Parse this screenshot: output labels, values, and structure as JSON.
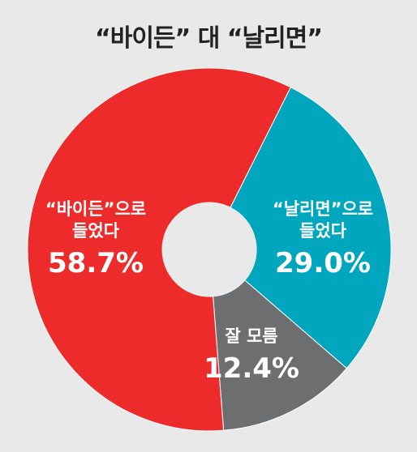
{
  "chart_data": {
    "type": "pie",
    "title": "“바이든” 대 “날리면”",
    "donut": true,
    "slices": [
      {
        "lines": [
          "“날리면”으로",
          "들었다"
        ],
        "percent_label": "29.0%",
        "value": 29.0,
        "color": "#00a6be"
      },
      {
        "lines": [
          "잘 모름"
        ],
        "percent_label": "12.4%",
        "value": 12.4,
        "color": "#6d6e70"
      },
      {
        "lines": [
          "“바이든”으로",
          "들었다"
        ],
        "percent_label": "58.7%",
        "value": 58.7,
        "color": "#ee2b2b"
      }
    ]
  }
}
